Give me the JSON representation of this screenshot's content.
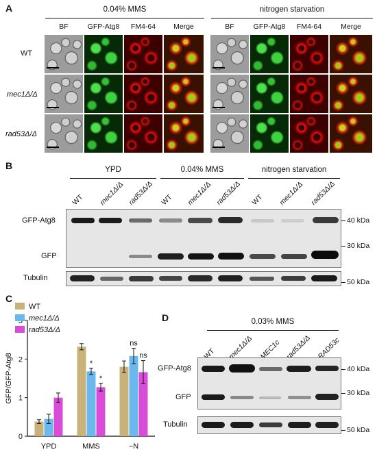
{
  "panelA": {
    "label": "A",
    "conditions": [
      "0.04% MMS",
      "nitrogen starvation"
    ],
    "columns": [
      "BF",
      "GFP-Atg8",
      "FM4-64",
      "Merge"
    ],
    "rows": [
      {
        "label": "WT",
        "italic": false
      },
      {
        "label": "mec1Δ/Δ",
        "italic": true
      },
      {
        "label": "rad53Δ/Δ",
        "italic": true
      }
    ]
  },
  "panelB": {
    "label": "B",
    "groups": [
      "YPD",
      "0.04% MMS",
      "nitrogen starvation"
    ],
    "lanes": [
      "WT",
      "mec1Δ/Δ",
      "rad53Δ/Δ",
      "WT",
      "mec1Δ/Δ",
      "rad53Δ/Δ",
      "WT",
      "mec1Δ/Δ",
      "rad53Δ/Δ"
    ],
    "band_labels": {
      "gfp_atg8": "GFP-Atg8",
      "gfp": "GFP",
      "tubulin": "Tubulin"
    },
    "markers": {
      "m40": "40 kDa",
      "m30": "30 kDa",
      "m50": "50 kDa"
    }
  },
  "panelD": {
    "label": "D",
    "condition": "0.03% MMS",
    "lanes": [
      "WT",
      "mec1Δ/Δ",
      "MEC1c",
      "rad53Δ/Δ",
      "RAD53c"
    ],
    "band_labels": {
      "gfp_atg8": "GFP-Atg8",
      "gfp": "GFP",
      "tubulin": "Tubulin"
    },
    "markers": {
      "m40": "40 kDa",
      "m30": "30 kDa",
      "m50": "50 kDa"
    }
  },
  "chart_data": {
    "label": "C",
    "type": "bar",
    "categories": [
      "YPD",
      "MMS",
      "−N"
    ],
    "ylabel": "GFP/GFP-Atg8",
    "ylim": [
      0,
      3
    ],
    "yticks": [
      "0",
      "1",
      "2",
      "3"
    ],
    "series": [
      {
        "name": "WT",
        "color": "#c8b27a",
        "values": [
          0.38,
          2.32,
          1.8
        ],
        "errors": [
          0.05,
          0.08,
          0.15
        ]
      },
      {
        "name": "mec1Δ/Δ",
        "color": "#6ab8ee",
        "values": [
          0.45,
          1.68,
          2.08
        ],
        "errors": [
          0.12,
          0.08,
          0.2
        ]
      },
      {
        "name": "rad53Δ/Δ",
        "color": "#d84cd8",
        "values": [
          1.0,
          1.27,
          1.66
        ],
        "errors": [
          0.12,
          0.1,
          0.3
        ]
      }
    ],
    "annotations": [
      {
        "category": "MMS",
        "series": "mec1Δ/Δ",
        "text": "*"
      },
      {
        "category": "MMS",
        "series": "rad53Δ/Δ",
        "text": "*"
      },
      {
        "category": "−N",
        "series": "mec1Δ/Δ",
        "text": "ns"
      },
      {
        "category": "−N",
        "series": "rad53Δ/Δ",
        "text": "ns"
      }
    ]
  }
}
